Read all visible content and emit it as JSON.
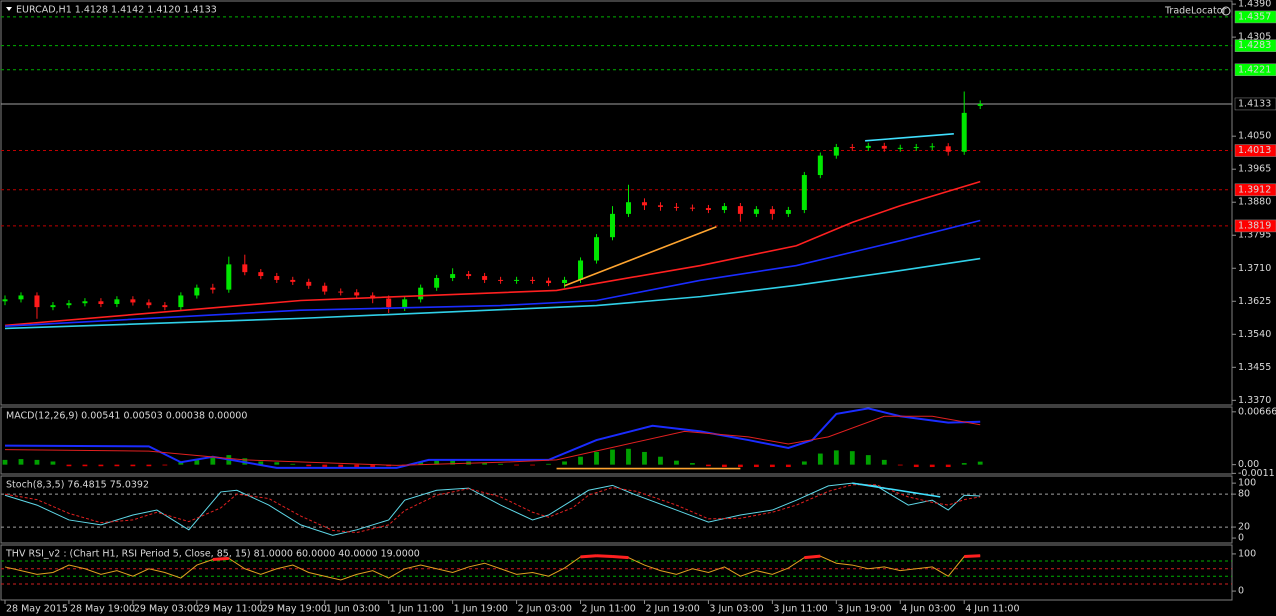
{
  "chart_data": [
    {
      "type": "candlestick",
      "title": "EURCAD,H1  1.4128 1.4142 1.4120 1.4133",
      "watermark": "TradeLocator",
      "up_color": "#00e600",
      "down_color": "#ff1a1a",
      "x": [
        0,
        2,
        4,
        6,
        8,
        10,
        12,
        14,
        16,
        18,
        20,
        22,
        24,
        26,
        28,
        30,
        32,
        34,
        36,
        38,
        40,
        42,
        44,
        46,
        48,
        50,
        52,
        54,
        56,
        58,
        60,
        62,
        64,
        66,
        68,
        70,
        72,
        74,
        76,
        78,
        80,
        82,
        84,
        86,
        88,
        90,
        92,
        94,
        96,
        98,
        100,
        102,
        104,
        106,
        108,
        110,
        112,
        114,
        116,
        118,
        120,
        122
      ],
      "open": [
        1.3625,
        1.363,
        1.364,
        1.361,
        1.3615,
        1.362,
        1.3625,
        1.3618,
        1.363,
        1.3622,
        1.3615,
        1.361,
        1.364,
        1.366,
        1.3655,
        1.372,
        1.37,
        1.369,
        1.368,
        1.3675,
        1.3665,
        1.365,
        1.3648,
        1.364,
        1.3632,
        1.361,
        1.363,
        1.366,
        1.3685,
        1.3695,
        1.369,
        1.368,
        1.3678,
        1.368,
        1.3678,
        1.3672,
        1.368,
        1.373,
        1.379,
        1.385,
        1.388,
        1.3872,
        1.3868,
        1.3866,
        1.3865,
        1.386,
        1.387,
        1.385,
        1.3862,
        1.385,
        1.386,
        1.395,
        1.4,
        1.4022,
        1.402,
        1.4025,
        1.4018,
        1.402,
        1.4022,
        1.4024,
        1.401,
        1.4128
      ],
      "high": [
        1.364,
        1.3648,
        1.3648,
        1.3623,
        1.3628,
        1.3633,
        1.3633,
        1.3638,
        1.3638,
        1.363,
        1.3623,
        1.3648,
        1.3668,
        1.367,
        1.374,
        1.3745,
        1.3708,
        1.3698,
        1.3688,
        1.3683,
        1.3673,
        1.3658,
        1.3656,
        1.3648,
        1.364,
        1.3638,
        1.3668,
        1.3693,
        1.371,
        1.3703,
        1.3698,
        1.3688,
        1.3688,
        1.3688,
        1.3686,
        1.3688,
        1.3738,
        1.3798,
        1.387,
        1.3925,
        1.389,
        1.388,
        1.3878,
        1.3874,
        1.3873,
        1.3878,
        1.3878,
        1.387,
        1.387,
        1.3868,
        1.3958,
        1.4008,
        1.403,
        1.403,
        1.4033,
        1.4033,
        1.4028,
        1.403,
        1.4032,
        1.4032,
        1.4165,
        1.4142
      ],
      "low": [
        1.3615,
        1.3622,
        1.358,
        1.3602,
        1.3607,
        1.3612,
        1.361,
        1.361,
        1.3614,
        1.3607,
        1.3602,
        1.3602,
        1.3632,
        1.3645,
        1.3647,
        1.3692,
        1.3682,
        1.3672,
        1.3667,
        1.3657,
        1.3642,
        1.364,
        1.3632,
        1.362,
        1.3595,
        1.36,
        1.3622,
        1.3652,
        1.3677,
        1.3682,
        1.3672,
        1.367,
        1.367,
        1.367,
        1.3664,
        1.366,
        1.3672,
        1.3722,
        1.3782,
        1.3842,
        1.386,
        1.3858,
        1.3858,
        1.3857,
        1.3852,
        1.3852,
        1.383,
        1.3842,
        1.3835,
        1.3842,
        1.3852,
        1.3942,
        1.3992,
        1.4012,
        1.4012,
        1.401,
        1.401,
        1.4012,
        1.4014,
        1.4,
        1.4002,
        1.412
      ],
      "close": [
        1.363,
        1.364,
        1.361,
        1.3615,
        1.362,
        1.3625,
        1.3618,
        1.363,
        1.3622,
        1.3615,
        1.361,
        1.364,
        1.366,
        1.3655,
        1.372,
        1.37,
        1.369,
        1.368,
        1.3675,
        1.3665,
        1.365,
        1.3648,
        1.364,
        1.3632,
        1.361,
        1.363,
        1.366,
        1.3685,
        1.3695,
        1.369,
        1.368,
        1.3678,
        1.368,
        1.3678,
        1.3672,
        1.368,
        1.373,
        1.379,
        1.385,
        1.388,
        1.3872,
        1.3868,
        1.3866,
        1.3865,
        1.386,
        1.387,
        1.385,
        1.3862,
        1.385,
        1.386,
        1.395,
        1.4,
        1.4022,
        1.402,
        1.4025,
        1.4018,
        1.402,
        1.4022,
        1.4024,
        1.401,
        1.411,
        1.4133
      ],
      "series": [
        {
          "color": "#ff2020",
          "x": [
            0,
            37,
            69,
            74,
            87,
            99,
            106,
            112,
            122
          ],
          "values": [
            1.3563,
            1.3627,
            1.3653,
            1.3671,
            1.3717,
            1.3768,
            1.3828,
            1.3871,
            1.3933
          ]
        },
        {
          "color": "#1a2cff",
          "x": [
            0,
            37,
            62,
            74,
            87,
            99,
            112,
            122
          ],
          "values": [
            1.3561,
            1.3602,
            1.3614,
            1.3627,
            1.3679,
            1.3717,
            1.3781,
            1.3833
          ]
        },
        {
          "color": "#30d0e8",
          "x": [
            0,
            37,
            74,
            87,
            99,
            112,
            122
          ],
          "values": [
            1.3555,
            1.3581,
            1.3614,
            1.3637,
            1.3666,
            1.3704,
            1.3735
          ]
        }
      ],
      "trendlines": [
        {
          "color": "#ffa530",
          "x": [
            70,
            89
          ],
          "values": [
            1.3665,
            1.3817
          ]
        },
        {
          "color": "#40e0ff",
          "x": [
            107.6,
            118.7
          ],
          "values": [
            1.4038,
            1.4056
          ]
        }
      ],
      "level_tags": true,
      "levels": [
        {
          "value": 1.4357,
          "color": "#00b000",
          "dash": true,
          "box": "#00ff00",
          "text_color": "#000000"
        },
        {
          "value": 1.4283,
          "color": "#00b000",
          "dash": true,
          "box": "#00ff00",
          "text_color": "#000000"
        },
        {
          "value": 1.4221,
          "color": "#00b000",
          "dash": true,
          "box": "#00ff00",
          "text_color": "#000000"
        },
        {
          "value": 1.4133,
          "color": "#a0a0a0",
          "dash": false,
          "box": "#000000",
          "text_color": "#ffffff"
        },
        {
          "value": 1.4013,
          "color": "#c00000",
          "dash": true,
          "box": "#ff0000",
          "text_color": "#000000"
        },
        {
          "value": 1.3912,
          "color": "#c00000",
          "dash": true,
          "box": "#ff0000",
          "text_color": "#000000"
        },
        {
          "value": 1.3819,
          "color": "#c00000",
          "dash": true,
          "box": "#ff0000",
          "text_color": "#000000"
        }
      ],
      "ylim": [
        1.3358,
        1.4398
      ],
      "yticks": [
        {
          "value": 1.439,
          "label": "1.4390"
        },
        1.4305,
        {
          "value": 1.405,
          "label": "1.4050"
        },
        1.3965,
        {
          "value": 1.388,
          "label": "1.3880"
        },
        1.3795,
        {
          "value": 1.371,
          "label": "1.3710"
        },
        1.3625,
        {
          "value": 1.354,
          "label": "1.3540"
        },
        1.3455,
        {
          "value": 1.337,
          "label": "1.3370"
        }
      ],
      "xlim": [
        -0.5,
        153.5
      ],
      "xticks": [
        {
          "value": 0,
          "label": "28 May 2015"
        },
        {
          "value": 8,
          "label": "28 May 19:00"
        },
        {
          "value": 16,
          "label": "29 May 03:00"
        },
        {
          "value": 24,
          "label": "29 May 11:00"
        },
        {
          "value": 32,
          "label": "29 May 19:00"
        },
        {
          "value": 40,
          "label": "1 Jun 03:00"
        },
        {
          "value": 48,
          "label": "1 Jun 11:00"
        },
        {
          "value": 56,
          "label": "1 Jun 19:00"
        },
        {
          "value": 64,
          "label": "2 Jun 03:00"
        },
        {
          "value": 72,
          "label": "2 Jun 11:00"
        },
        {
          "value": 80,
          "label": "2 Jun 19:00"
        },
        {
          "value": 88,
          "label": "3 Jun 03:00"
        },
        {
          "value": 96,
          "label": "3 Jun 11:00"
        },
        {
          "value": 104,
          "label": "3 Jun 19:00"
        },
        {
          "value": 112,
          "label": "4 Jun 03:00"
        },
        {
          "value": 120,
          "label": "4 Jun 11:00"
        }
      ]
    },
    {
      "type": "macd",
      "title": "MACD(12,26,9) 0.00541 0.00503 0.00038 0.00000",
      "pos_color": "#00a000",
      "neg_color": "#e00000",
      "histogram": [
        0.0006,
        0.0007,
        0.0006,
        0.0004,
        -0.0002,
        -0.0002,
        -0.0002,
        -0.0002,
        -0.0002,
        -0.0002,
        -0.0001,
        0.0004,
        0.0007,
        0.0009,
        0.0012,
        0.0008,
        0.0004,
        0.0003,
        0.0001,
        -0.0002,
        -0.0003,
        -0.0003,
        -0.0003,
        -0.0003,
        -0.0002,
        -0.0001,
        0.0003,
        0.0005,
        0.0005,
        0.0004,
        0.0002,
        0.0001,
        -0.0001,
        -0.0001,
        0.0001,
        0.0004,
        0.001,
        0.0016,
        0.0019,
        0.002,
        0.0016,
        0.001,
        0.0005,
        0.0002,
        -0.0002,
        -0.0003,
        -0.0003,
        -0.0003,
        -0.0003,
        -0.0003,
        0.0004,
        0.0014,
        0.0018,
        0.0017,
        0.0012,
        0.0006,
        -0.0001,
        -0.0003,
        -0.0003,
        -0.0003,
        0.0002,
        0.00038
      ],
      "series": [
        {
          "color": "#1a2cff",
          "width": 2,
          "x": [
            0,
            18,
            22,
            26,
            34,
            49,
            53,
            58,
            68,
            74,
            81,
            87,
            93,
            98,
            101,
            104,
            108,
            112,
            118,
            122
          ],
          "values": [
            0.0024,
            0.0023,
            0.0003,
            0.001,
            -0.0004,
            -0.0004,
            0.0006,
            0.0006,
            0.0006,
            0.0031,
            0.0049,
            0.0042,
            0.0031,
            0.0021,
            0.0031,
            0.0064,
            0.0071,
            0.0061,
            0.0053,
            0.00541
          ]
        },
        {
          "color": "#e02020",
          "width": 1,
          "x": [
            0,
            18,
            30,
            49,
            62,
            69,
            77,
            85,
            93,
            98,
            103,
            110,
            116,
            122
          ],
          "values": [
            0.0019,
            0.0017,
            0.0006,
            -0.0001,
            0.0003,
            0.0006,
            0.0024,
            0.0042,
            0.0035,
            0.0026,
            0.0035,
            0.0061,
            0.0061,
            0.00503
          ]
        }
      ],
      "trendlines": [
        {
          "color": "#ffa530",
          "x": [
            69,
            92
          ],
          "values": [
            -0.0005,
            -0.0005
          ]
        }
      ],
      "ylim": [
        -0.00118,
        0.00727
      ],
      "yticks": [
        0.00666,
        {
          "value": 0,
          "label": "0.00"
        },
        -0.0011
      ]
    },
    {
      "type": "line",
      "title": "Stoch(8,3,5) 76.4815 75.0392",
      "series": [
        {
          "color": "#5fd8e8",
          "width": 1,
          "x": [
            0,
            4,
            8,
            12,
            16,
            19,
            23,
            27,
            29,
            33,
            37,
            41,
            44,
            48,
            50,
            54,
            58,
            62,
            66,
            68,
            71,
            73,
            76,
            79,
            84,
            88,
            92,
            96,
            99,
            103,
            106,
            109,
            113,
            116,
            118,
            120,
            122
          ],
          "values": [
            78,
            60,
            33,
            24,
            42,
            51,
            15,
            84,
            87,
            60,
            24,
            5,
            15,
            33,
            69,
            87,
            91,
            60,
            33,
            42,
            69,
            87,
            96,
            78,
            51,
            29,
            42,
            51,
            69,
            95,
            100,
            95,
            60,
            69,
            51,
            78,
            76.4815
          ]
        },
        {
          "color": "#e02020",
          "width": 1,
          "dash": true,
          "x": [
            0,
            4,
            8,
            12,
            16,
            19,
            23,
            27,
            29,
            33,
            37,
            41,
            44,
            48,
            50,
            54,
            58,
            62,
            66,
            68,
            71,
            73,
            76,
            79,
            84,
            88,
            92,
            96,
            99,
            103,
            106,
            109,
            113,
            116,
            118,
            120,
            122
          ],
          "values": [
            80,
            70,
            45,
            28,
            33,
            47,
            30,
            55,
            80,
            72,
            40,
            14,
            10,
            24,
            50,
            78,
            90,
            75,
            47,
            38,
            55,
            78,
            92,
            85,
            60,
            35,
            36,
            47,
            60,
            85,
            97,
            97,
            75,
            65,
            60,
            70,
            75.0392
          ]
        }
      ],
      "trendlines": [
        {
          "color": "#40e0ff",
          "x": [
            106,
            117
          ],
          "values": [
            100,
            75
          ]
        }
      ],
      "levels": [
        {
          "value": 80,
          "color": "#a0a0a0",
          "dash": true
        },
        {
          "value": 20,
          "color": "#a0a0a0",
          "dash": true
        }
      ],
      "ylim": [
        -9,
        113
      ],
      "yticks": [
        100,
        80,
        20,
        0
      ]
    },
    {
      "type": "line",
      "title": "THV RSI_v2 : (Chart H1,  RSI Period 5,  Close,  85,  15)  81.0000 60.0000 40.0000 19.0000",
      "highlight_color": "#ff2020",
      "series": [
        {
          "color": "#e0a020",
          "width": 1,
          "values": [
            65,
            55,
            45,
            50,
            70,
            60,
            45,
            55,
            40,
            60,
            50,
            35,
            70,
            85,
            88,
            60,
            45,
            60,
            70,
            50,
            40,
            30,
            45,
            55,
            35,
            60,
            70,
            60,
            50,
            65,
            75,
            60,
            45,
            50,
            40,
            62,
            92,
            95,
            93,
            90,
            70,
            55,
            45,
            60,
            50,
            65,
            40,
            55,
            45,
            62,
            90,
            94,
            75,
            70,
            60,
            65,
            55,
            60,
            65,
            40,
            93,
            95
          ]
        }
      ],
      "levels": [
        {
          "value": 81,
          "color": "#00b000",
          "dash": true
        },
        {
          "value": 60,
          "color": "#d02020",
          "dash": true
        },
        {
          "value": 40,
          "color": "#00b000",
          "dash": true
        },
        {
          "value": 19,
          "color": "#d02020",
          "dash": true
        }
      ],
      "ylim": [
        -24,
        124
      ],
      "yticks": [
        100,
        0
      ]
    }
  ]
}
